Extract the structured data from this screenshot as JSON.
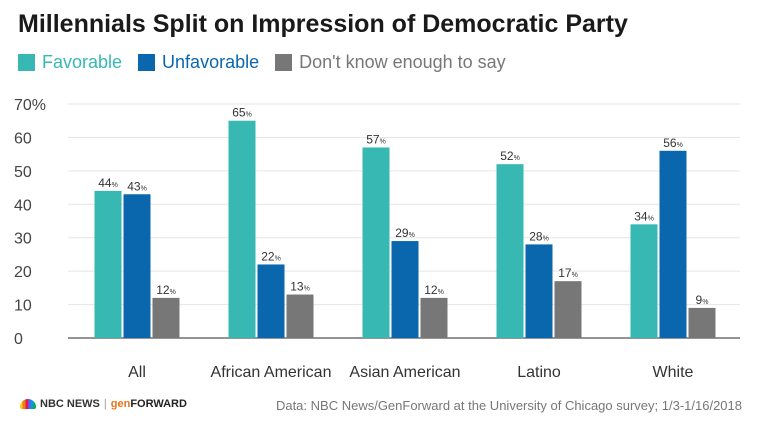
{
  "colors": {
    "favorable": "#37b8b3",
    "unfavorable": "#0a67ad",
    "dont_know": "#777777",
    "grid": "#e5e5e5",
    "axis_text": "#444444"
  },
  "logo": {
    "nbc": "NBC NEWS",
    "sep": "|",
    "gen": "gen",
    "forward": "FORWARD"
  },
  "source": "Data: NBC News/GenForward at the University of Chicago survey; 1/3-1/16/2018",
  "chart_data": {
    "type": "bar",
    "title": "Millennials Split on Impression of Democratic Party",
    "categories": [
      "All",
      "African American",
      "Asian American",
      "Latino",
      "White"
    ],
    "series": [
      {
        "name": "Favorable",
        "values": [
          44,
          65,
          57,
          52,
          34
        ]
      },
      {
        "name": "Unfavorable",
        "values": [
          43,
          22,
          29,
          28,
          56
        ]
      },
      {
        "name": "Don't know enough to say",
        "values": [
          12,
          13,
          12,
          17,
          9
        ]
      }
    ],
    "ylim": [
      0,
      70
    ],
    "yticks": [
      "0",
      "10",
      "20",
      "30",
      "40",
      "50",
      "60",
      "70%"
    ],
    "value_suffix": "%",
    "legend": "top-left",
    "grid": true,
    "xlabel": "",
    "ylabel": ""
  }
}
